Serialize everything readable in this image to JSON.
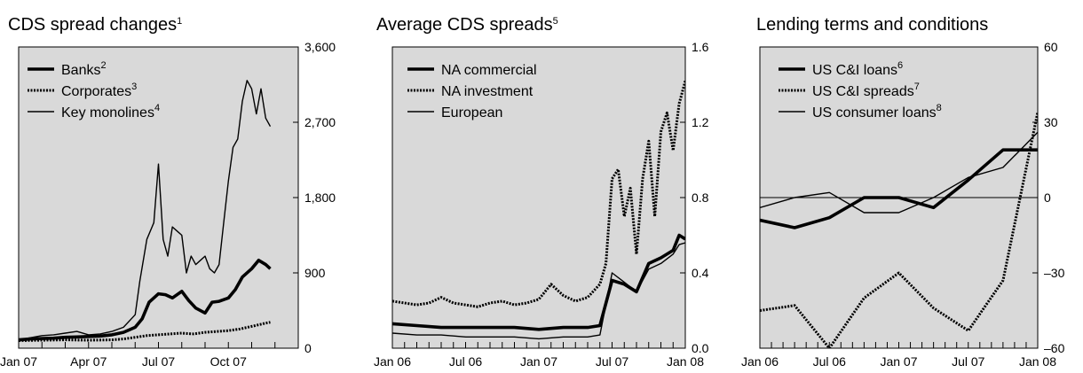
{
  "panels": [
    {
      "title": "CDS spread changes",
      "title_note": "1",
      "chart_data": {
        "type": "line",
        "x_ticks": [
          "Jan 07",
          "Apr 07",
          "Jul 07",
          "Oct 07"
        ],
        "x_range": [
          "Jan 07",
          "Jan 08"
        ],
        "ylim": [
          0,
          3600
        ],
        "y_ticks": [
          "0",
          "900",
          "1,800",
          "2,700",
          "3,600"
        ],
        "grid": false,
        "legend_position": "top-left",
        "series": [
          {
            "name": "Banks",
            "note": "2",
            "style": "thick",
            "x": [
              0,
              0.5,
              1,
              1.5,
              2,
              2.5,
              3,
              3.5,
              4,
              4.5,
              5,
              5.3,
              5.6,
              6,
              6.3,
              6.6,
              7,
              7.3,
              7.6,
              8,
              8.3,
              8.6,
              9,
              9.3,
              9.6,
              10,
              10.3,
              10.6,
              10.8
            ],
            "y": [
              100,
              110,
              115,
              120,
              130,
              135,
              140,
              145,
              160,
              190,
              250,
              350,
              550,
              650,
              640,
              600,
              680,
              570,
              480,
              420,
              550,
              560,
              600,
              700,
              850,
              950,
              1050,
              1000,
              950
            ]
          },
          {
            "name": "Corporates",
            "note": "3",
            "style": "dotted",
            "x": [
              0,
              1,
              2,
              3,
              4,
              4.5,
              5,
              5.5,
              6,
              6.5,
              7,
              7.5,
              8,
              8.5,
              9,
              9.5,
              10,
              10.3,
              10.6,
              10.8
            ],
            "y": [
              90,
              95,
              100,
              95,
              100,
              110,
              130,
              150,
              160,
              170,
              180,
              170,
              190,
              200,
              210,
              230,
              260,
              280,
              300,
              310
            ]
          },
          {
            "name": "Key monolines",
            "note": "4",
            "style": "thin",
            "x": [
              0,
              1,
              1.5,
              2,
              2.5,
              3,
              3.5,
              4,
              4.5,
              5,
              5.2,
              5.5,
              5.8,
              6,
              6.2,
              6.4,
              6.6,
              6.8,
              7,
              7.2,
              7.4,
              7.6,
              7.8,
              8,
              8.2,
              8.4,
              8.6,
              8.8,
              9,
              9.2,
              9.4,
              9.6,
              9.8,
              10,
              10.2,
              10.4,
              10.6,
              10.8
            ],
            "y": [
              100,
              150,
              160,
              180,
              200,
              160,
              170,
              200,
              250,
              400,
              800,
              1300,
              1500,
              2200,
              1300,
              1100,
              1450,
              1400,
              1350,
              900,
              1100,
              1000,
              1050,
              1100,
              950,
              900,
              1000,
              1500,
              2000,
              2400,
              2500,
              2950,
              3200,
              3100,
              2800,
              3100,
              2750,
              2650
            ]
          }
        ]
      }
    },
    {
      "title": "Average CDS spreads",
      "title_note": "5",
      "chart_data": {
        "type": "line",
        "x_ticks": [
          "Jan 06",
          "Jul 06",
          "Jan 07",
          "Jul 07",
          "Jan 08"
        ],
        "x_range": [
          "Jan 06",
          "Jan 08"
        ],
        "ylim": [
          0,
          1.6
        ],
        "y_ticks": [
          "0.0",
          "0.4",
          "0.8",
          "1.2",
          "1.6"
        ],
        "grid": false,
        "legend_position": "top-left",
        "series": [
          {
            "name": "NA commercial",
            "note": "",
            "style": "thick",
            "x": [
              0,
              2,
              4,
              6,
              8,
              10,
              12,
              14,
              16,
              17,
              18,
              19,
              20,
              21,
              22,
              23,
              23.5,
              24
            ],
            "y": [
              0.13,
              0.12,
              0.11,
              0.11,
              0.11,
              0.11,
              0.1,
              0.11,
              0.11,
              0.12,
              0.36,
              0.34,
              0.3,
              0.45,
              0.48,
              0.52,
              0.6,
              0.58
            ]
          },
          {
            "name": "NA investment",
            "note": "",
            "style": "dotted",
            "x": [
              0,
              1,
              2,
              3,
              4,
              5,
              6,
              7,
              8,
              9,
              10,
              11,
              12,
              13,
              14,
              15,
              16,
              17,
              17.5,
              18,
              18.5,
              19,
              19.5,
              20,
              20.5,
              21,
              21.5,
              22,
              22.5,
              23,
              23.5,
              24
            ],
            "y": [
              0.25,
              0.24,
              0.23,
              0.24,
              0.27,
              0.24,
              0.23,
              0.22,
              0.24,
              0.25,
              0.23,
              0.24,
              0.26,
              0.34,
              0.28,
              0.25,
              0.27,
              0.34,
              0.45,
              0.9,
              0.95,
              0.7,
              0.85,
              0.5,
              0.9,
              1.1,
              0.7,
              1.15,
              1.25,
              1.05,
              1.3,
              1.42
            ]
          },
          {
            "name": "European",
            "note": "",
            "style": "thin",
            "x": [
              0,
              2,
              4,
              6,
              8,
              10,
              12,
              14,
              16,
              17,
              18,
              19,
              20,
              21,
              22,
              23,
              23.5,
              24
            ],
            "y": [
              0.08,
              0.07,
              0.07,
              0.06,
              0.06,
              0.06,
              0.05,
              0.06,
              0.06,
              0.07,
              0.4,
              0.35,
              0.3,
              0.42,
              0.45,
              0.5,
              0.55,
              0.56
            ]
          }
        ]
      }
    },
    {
      "title": "Lending terms and conditions",
      "title_note": "",
      "chart_data": {
        "type": "line",
        "x_ticks": [
          "Jan 06",
          "Jul 06",
          "Jan 07",
          "Jul 07",
          "Jan 08"
        ],
        "x_range": [
          "Jan 06",
          "Jan 08"
        ],
        "ylim": [
          -60,
          60
        ],
        "y_ticks": [
          "–60",
          "–30",
          "0",
          "30",
          "60"
        ],
        "zero_line": true,
        "grid": false,
        "legend_position": "top-left",
        "series": [
          {
            "name": "US C&I loans",
            "note": "6",
            "style": "thick",
            "x": [
              0,
              3,
              6,
              9,
              12,
              15,
              18,
              21,
              24
            ],
            "y": [
              -9,
              -12,
              -8,
              0,
              0,
              -4,
              7,
              19,
              19
            ]
          },
          {
            "name": "US C&I spreads",
            "note": "7",
            "style": "dotted",
            "x": [
              0,
              3,
              6,
              9,
              12,
              15,
              18,
              21,
              24
            ],
            "y": [
              -45,
              -43,
              -60,
              -40,
              -30,
              -44,
              -53,
              -33,
              34
            ]
          },
          {
            "name": "US consumer loans",
            "note": "8",
            "style": "thin",
            "x": [
              0,
              3,
              6,
              9,
              12,
              15,
              18,
              21,
              24
            ],
            "y": [
              -4,
              0,
              2,
              -6,
              -6,
              0,
              8,
              12,
              26
            ]
          }
        ]
      }
    }
  ]
}
